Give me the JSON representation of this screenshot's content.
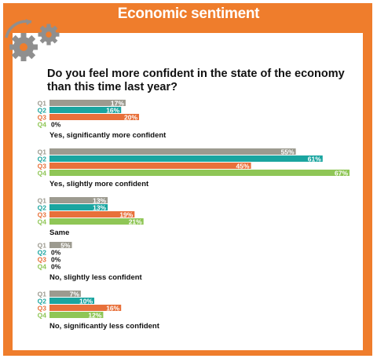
{
  "title": "Economic sentiment",
  "question": "Do you feel more confident in the state of the economy than this time last year?",
  "icons": [
    "gears-icon"
  ],
  "colors": {
    "frame": "#ef7d2c",
    "Q1": "#9c9a8f",
    "Q2": "#1aa5a0",
    "Q3": "#e8703a",
    "Q4": "#8fc656"
  },
  "chart_data": {
    "type": "bar",
    "orientation": "horizontal",
    "title": "Do you feel more confident in the state of the economy than this time last year?",
    "series_names": [
      "Q1",
      "Q2",
      "Q3",
      "Q4"
    ],
    "value_suffix": "%",
    "xlim": [
      0,
      67
    ],
    "groups": [
      {
        "category": "Yes, significantly more confident",
        "values": [
          17,
          16,
          20,
          0
        ]
      },
      {
        "category": "Yes, slightly more confident",
        "values": [
          55,
          61,
          45,
          67
        ]
      },
      {
        "category": "Same",
        "values": [
          13,
          13,
          19,
          21
        ]
      },
      {
        "category": "No, slightly less confident",
        "values": [
          5,
          0,
          0,
          0
        ]
      },
      {
        "category": "No, significantly less confident",
        "values": [
          7,
          10,
          16,
          12
        ]
      }
    ]
  }
}
